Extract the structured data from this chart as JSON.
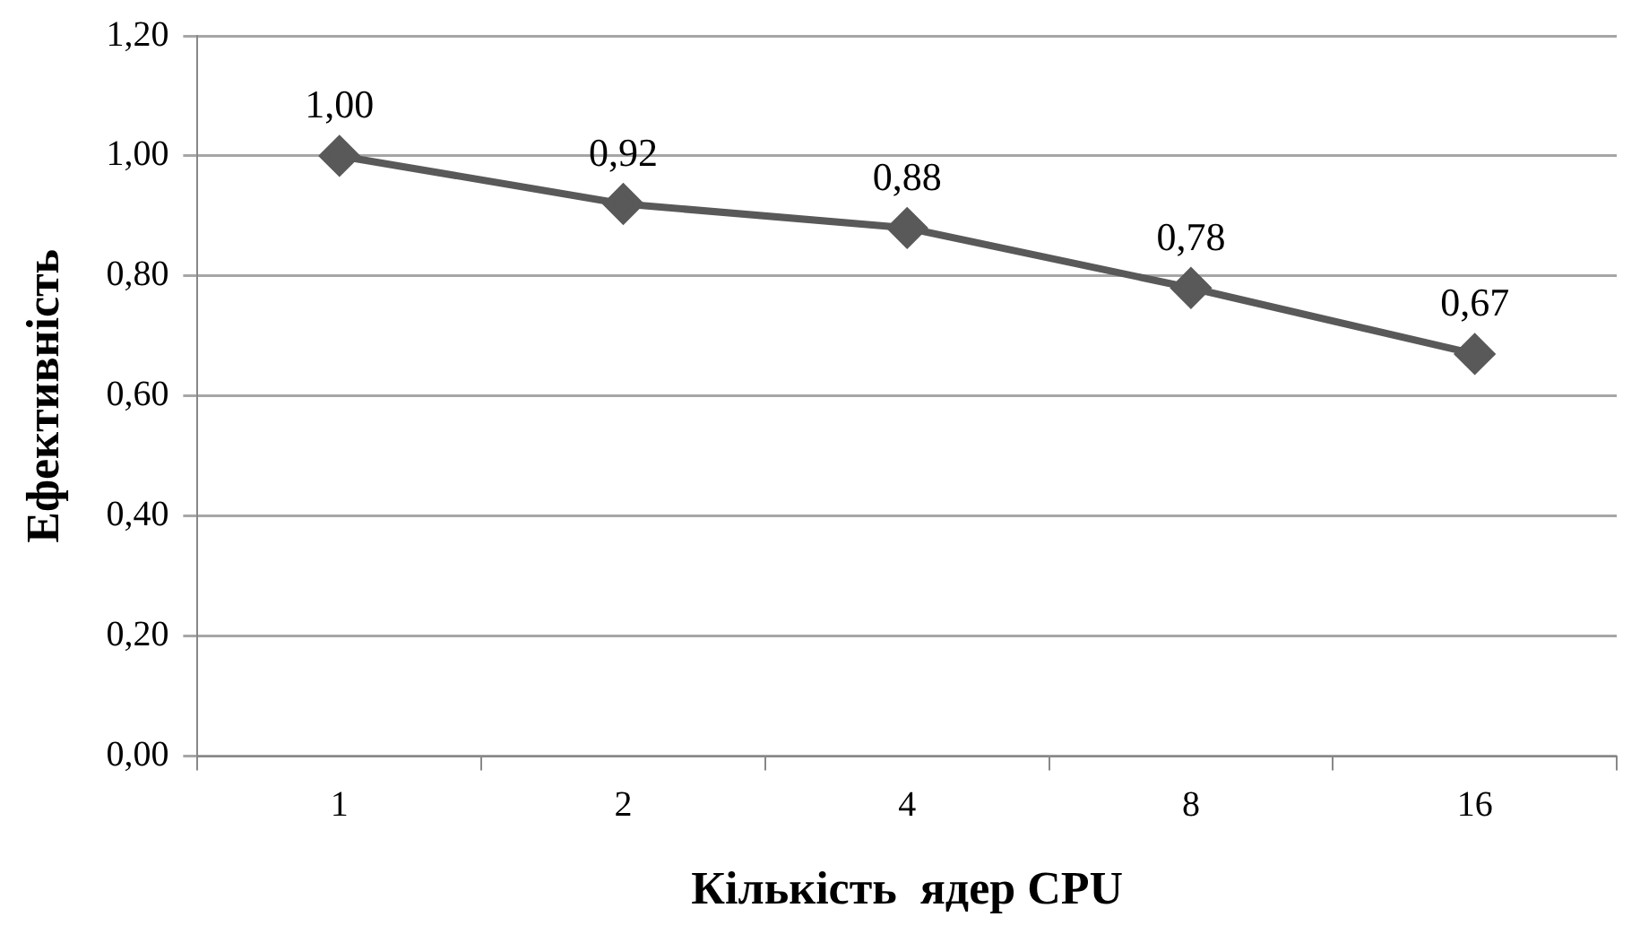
{
  "chart_data": {
    "type": "line",
    "xlabel": "Кількість  ядер CPU",
    "ylabel": "Ефективність",
    "categories": [
      "1",
      "2",
      "4",
      "8",
      "16"
    ],
    "series": [
      {
        "color": "#595959",
        "values": [
          1.0,
          0.92,
          0.88,
          0.78,
          0.67
        ],
        "value_labels": [
          "1,00",
          "0,92",
          "0,88",
          "0,78",
          "0,67"
        ]
      }
    ],
    "ylim": [
      0,
      1.2
    ],
    "yticks": [
      {
        "value": 0,
        "label": "0,00"
      },
      {
        "value": 0.2,
        "label": "0,20"
      },
      {
        "value": 0.4,
        "label": "0,40"
      },
      {
        "value": 0.6,
        "label": "0,60"
      },
      {
        "value": 0.8,
        "label": "0,80"
      },
      {
        "value": 1,
        "label": "1,00"
      },
      {
        "value": 1.2,
        "label": "1,20"
      }
    ],
    "grid": "y",
    "legend": false,
    "marker": "diamond",
    "line_style": "solid"
  }
}
